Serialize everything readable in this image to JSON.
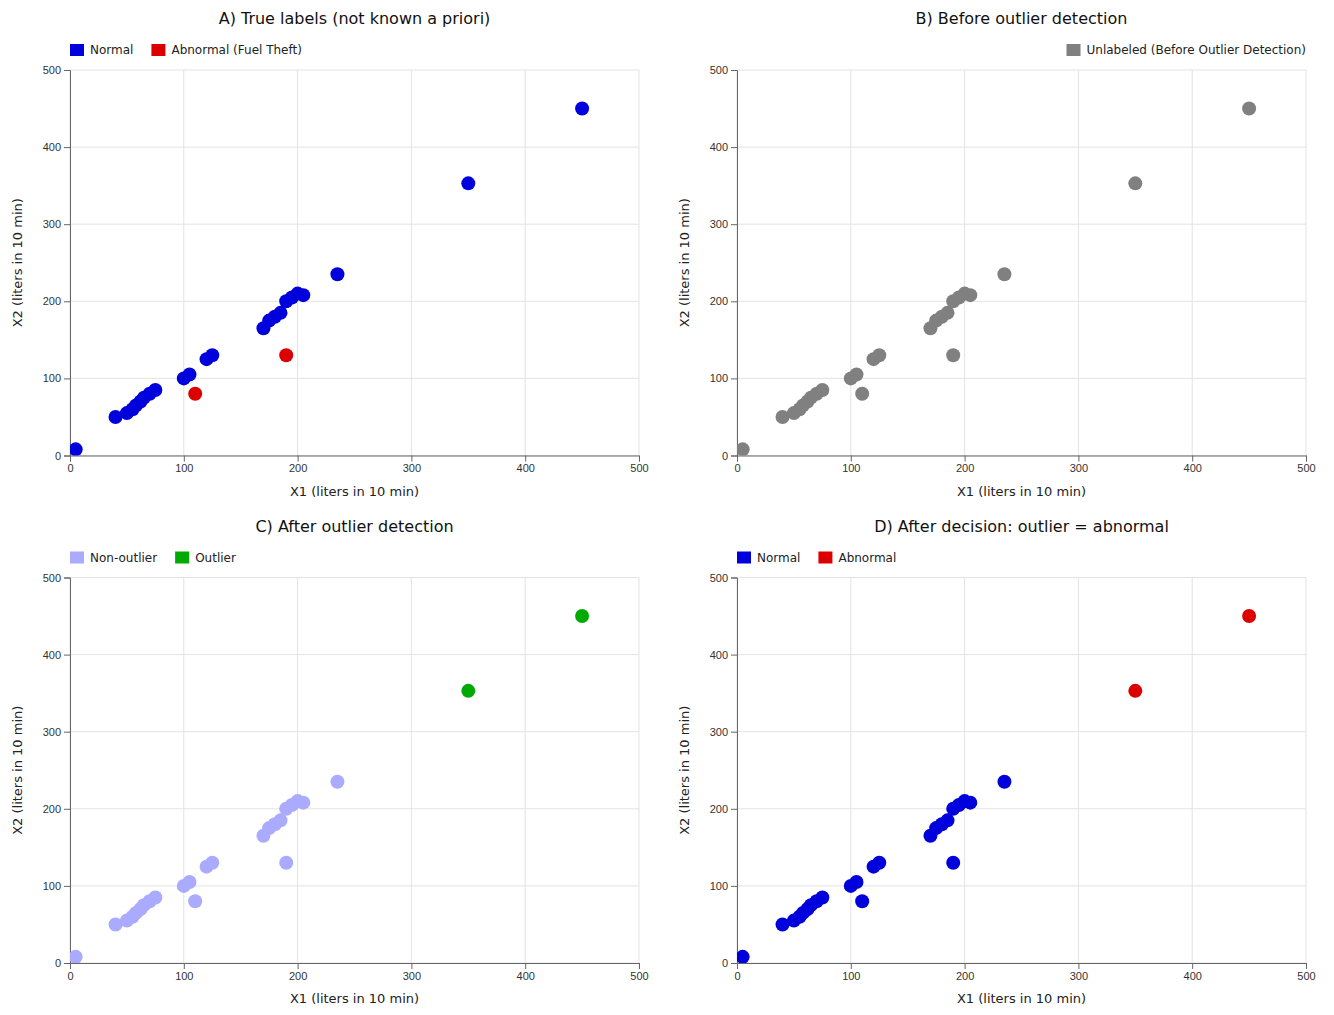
{
  "chart_data": [
    {
      "type": "scatter",
      "title": "A) True labels (not known a priori)",
      "xlabel": "X1 (liters in 10 min)",
      "ylabel": "X2 (liters in 10 min)",
      "xlim": [
        0,
        500
      ],
      "ylim": [
        0,
        500
      ],
      "xticks": [
        0,
        100,
        200,
        300,
        400,
        500
      ],
      "yticks": [
        0,
        100,
        200,
        300,
        400,
        500
      ],
      "grid": true,
      "legend": "upper left",
      "series": [
        {
          "name": "Normal",
          "color": "#0000dd",
          "x": [
            5,
            40,
            50,
            55,
            58,
            62,
            65,
            70,
            75,
            100,
            105,
            120,
            125,
            170,
            175,
            180,
            185,
            190,
            195,
            200,
            205,
            235,
            350,
            450
          ],
          "values": [
            8,
            50,
            55,
            60,
            65,
            70,
            75,
            80,
            85,
            100,
            105,
            125,
            130,
            165,
            175,
            180,
            185,
            200,
            205,
            210,
            208,
            235,
            353,
            450
          ]
        },
        {
          "name": "Abnormal (Fuel Theft)",
          "color": "#dd0000",
          "x": [
            110,
            190
          ],
          "values": [
            80,
            130
          ]
        }
      ]
    },
    {
      "type": "scatter",
      "title": "B) Before outlier detection",
      "xlabel": "X1 (liters in 10 min)",
      "ylabel": "X2 (liters in 10 min)",
      "xlim": [
        0,
        500
      ],
      "ylim": [
        0,
        500
      ],
      "xticks": [
        0,
        100,
        200,
        300,
        400,
        500
      ],
      "yticks": [
        0,
        100,
        200,
        300,
        400,
        500
      ],
      "grid": true,
      "legend": "upper right",
      "series": [
        {
          "name": "Unlabeled (Before Outlier Detection)",
          "color": "#808080",
          "x": [
            5,
            40,
            50,
            55,
            58,
            62,
            65,
            70,
            75,
            100,
            105,
            120,
            125,
            170,
            175,
            180,
            185,
            190,
            195,
            200,
            205,
            235,
            110,
            190,
            350,
            450
          ],
          "values": [
            8,
            50,
            55,
            60,
            65,
            70,
            75,
            80,
            85,
            100,
            105,
            125,
            130,
            165,
            175,
            180,
            185,
            200,
            205,
            210,
            208,
            235,
            80,
            130,
            353,
            450
          ]
        }
      ]
    },
    {
      "type": "scatter",
      "title": "C) After outlier detection",
      "xlabel": "X1 (liters in 10 min)",
      "ylabel": "X2 (liters in 10 min)",
      "xlim": [
        0,
        500
      ],
      "ylim": [
        0,
        500
      ],
      "xticks": [
        0,
        100,
        200,
        300,
        400,
        500
      ],
      "yticks": [
        0,
        100,
        200,
        300,
        400,
        500
      ],
      "grid": true,
      "legend": "upper left",
      "series": [
        {
          "name": "Non-outlier",
          "color": "#aaaaff",
          "x": [
            5,
            40,
            50,
            55,
            58,
            62,
            65,
            70,
            75,
            100,
            105,
            120,
            125,
            170,
            175,
            180,
            185,
            190,
            195,
            200,
            205,
            235,
            110,
            190
          ],
          "values": [
            8,
            50,
            55,
            60,
            65,
            70,
            75,
            80,
            85,
            100,
            105,
            125,
            130,
            165,
            175,
            180,
            185,
            200,
            205,
            210,
            208,
            235,
            80,
            130
          ]
        },
        {
          "name": "Outlier",
          "color": "#00aa00",
          "x": [
            350,
            450
          ],
          "values": [
            353,
            450
          ]
        }
      ]
    },
    {
      "type": "scatter",
      "title": "D) After decision: outlier = abnormal",
      "xlabel": "X1 (liters in 10 min)",
      "ylabel": "X2 (liters in 10 min)",
      "xlim": [
        0,
        500
      ],
      "ylim": [
        0,
        500
      ],
      "xticks": [
        0,
        100,
        200,
        300,
        400,
        500
      ],
      "yticks": [
        0,
        100,
        200,
        300,
        400,
        500
      ],
      "grid": true,
      "legend": "upper left",
      "series": [
        {
          "name": "Normal",
          "color": "#0000dd",
          "x": [
            5,
            40,
            50,
            55,
            58,
            62,
            65,
            70,
            75,
            100,
            105,
            120,
            125,
            170,
            175,
            180,
            185,
            190,
            195,
            200,
            205,
            235,
            110,
            190
          ],
          "values": [
            8,
            50,
            55,
            60,
            65,
            70,
            75,
            80,
            85,
            100,
            105,
            125,
            130,
            165,
            175,
            180,
            185,
            200,
            205,
            210,
            208,
            235,
            80,
            130
          ]
        },
        {
          "name": "Abnormal",
          "color": "#dd0000",
          "x": [
            350,
            450
          ],
          "values": [
            353,
            450
          ]
        }
      ]
    }
  ]
}
